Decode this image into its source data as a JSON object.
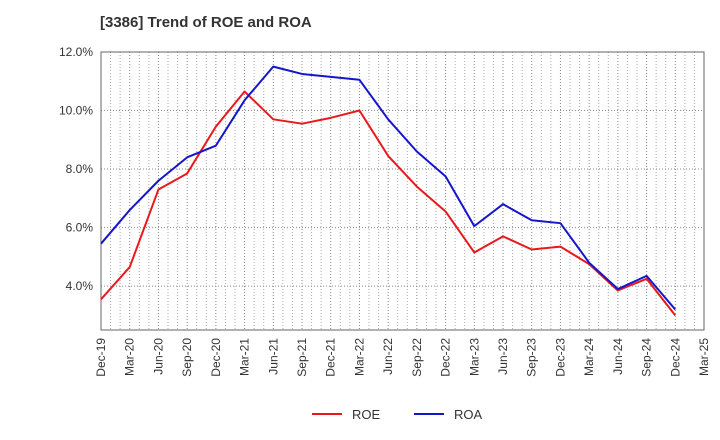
{
  "chart_data": {
    "type": "line",
    "title": "[3386]  Trend of ROE and ROA",
    "xlabel": "",
    "ylabel": "",
    "categories": [
      "Dec-19",
      "Mar-20",
      "Jun-20",
      "Sep-20",
      "Dec-20",
      "Mar-21",
      "Jun-21",
      "Sep-21",
      "Dec-21",
      "Mar-22",
      "Jun-22",
      "Sep-22",
      "Dec-22",
      "Mar-23",
      "Jun-23",
      "Sep-23",
      "Dec-23",
      "Mar-24",
      "Jun-24",
      "Sep-24",
      "Dec-24",
      "Mar-25"
    ],
    "ylim": [
      2.5,
      12.0
    ],
    "yticks": [
      4.0,
      6.0,
      8.0,
      10.0,
      12.0
    ],
    "ytick_labels": [
      "4.0%",
      "6.0%",
      "8.0%",
      "10.0%",
      "12.0%"
    ],
    "grid": true,
    "legend_position": "bottom",
    "series": [
      {
        "name": "ROE",
        "color": "#e8191c",
        "values": [
          3.55,
          4.65,
          7.3,
          7.85,
          9.45,
          10.65,
          9.7,
          9.55,
          9.75,
          10.0,
          8.45,
          7.4,
          6.55,
          5.15,
          5.7,
          5.25,
          5.35,
          4.75,
          3.85,
          4.25,
          3.0,
          null
        ]
      },
      {
        "name": "ROA",
        "color": "#1515cc",
        "values": [
          5.45,
          6.6,
          7.6,
          8.4,
          8.8,
          10.35,
          11.5,
          11.25,
          11.15,
          11.05,
          9.7,
          8.6,
          7.75,
          6.05,
          6.8,
          6.25,
          6.15,
          4.8,
          3.9,
          4.35,
          3.2,
          null
        ]
      }
    ]
  }
}
